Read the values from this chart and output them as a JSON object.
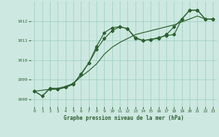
{
  "xlabel": "Graphe pression niveau de la mer (hPa)",
  "bg_color": "#cce8e0",
  "grid_color": "#99ccbb",
  "line_color": "#2d6030",
  "xlim": [
    -0.5,
    23.5
  ],
  "ylim": [
    1007.6,
    1013.0
  ],
  "yticks": [
    1008,
    1009,
    1010,
    1011,
    1012
  ],
  "xticks": [
    0,
    1,
    2,
    3,
    4,
    5,
    6,
    7,
    8,
    9,
    10,
    11,
    12,
    13,
    14,
    15,
    16,
    17,
    18,
    19,
    20,
    21,
    22,
    23
  ],
  "series1_x": [
    0,
    1,
    2,
    3,
    4,
    5,
    6,
    7,
    8,
    9,
    10,
    11,
    12,
    13,
    14,
    15,
    16,
    17,
    18,
    19,
    20,
    21,
    22,
    23
  ],
  "series1_y": [
    1008.4,
    1008.15,
    1008.55,
    1008.55,
    1008.65,
    1008.8,
    1009.15,
    1009.45,
    1009.8,
    1010.3,
    1010.65,
    1010.9,
    1011.1,
    1011.3,
    1011.4,
    1011.5,
    1011.6,
    1011.7,
    1011.8,
    1011.95,
    1012.1,
    1012.25,
    1012.1,
    1012.1
  ],
  "series2_x": [
    0,
    1,
    2,
    3,
    4,
    5,
    6,
    7,
    8,
    9,
    10,
    11,
    12,
    13,
    14,
    15,
    16,
    17,
    18,
    19,
    20,
    21,
    22,
    23
  ],
  "series2_y": [
    1008.4,
    1008.15,
    1008.55,
    1008.5,
    1008.6,
    1008.75,
    1009.3,
    1009.85,
    1010.7,
    1011.4,
    1011.65,
    1011.7,
    1011.6,
    1011.15,
    1011.0,
    1011.05,
    1011.1,
    1011.3,
    1011.7,
    1012.1,
    1012.55,
    1012.55,
    1012.1,
    1012.1
  ],
  "series3_x": [
    0,
    2,
    3,
    4,
    5,
    6,
    7,
    8,
    9,
    10,
    11,
    12,
    13,
    14,
    15,
    16,
    17,
    18,
    19,
    20,
    21,
    22,
    23
  ],
  "series3_y": [
    1008.4,
    1008.5,
    1008.5,
    1008.6,
    1008.8,
    1009.25,
    1009.85,
    1010.55,
    1011.1,
    1011.5,
    1011.7,
    1011.6,
    1011.1,
    1011.0,
    1011.05,
    1011.15,
    1011.25,
    1011.3,
    1012.1,
    1012.55,
    1012.55,
    1012.1,
    1012.1
  ]
}
